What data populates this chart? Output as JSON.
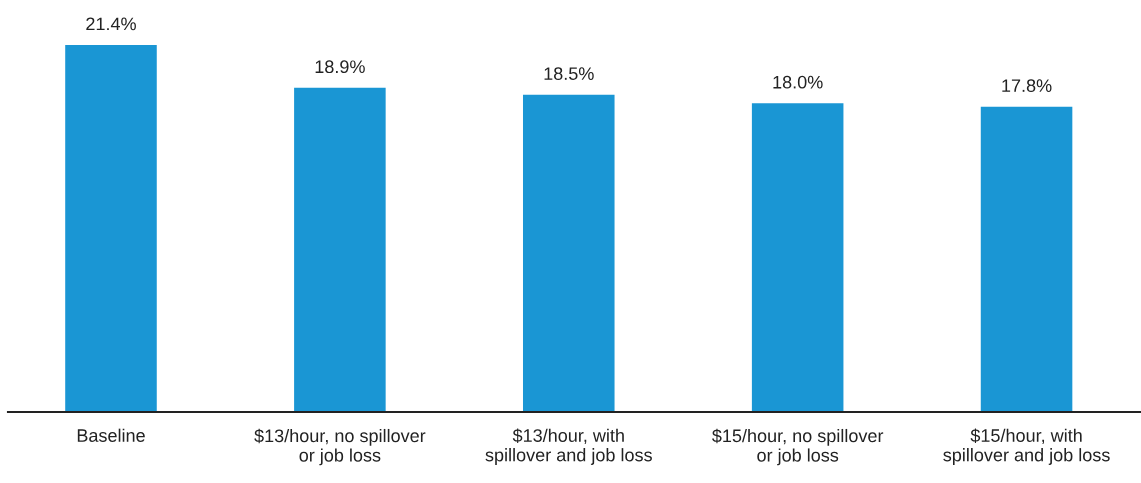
{
  "chart_data": {
    "type": "bar",
    "categories": [
      "Baseline",
      "$13/hour, no spillover\nor job loss",
      "$13/hour, with\nspillover and job loss",
      "$15/hour, no spillover\nor job loss",
      "$15/hour, with\nspillover and job loss"
    ],
    "values": [
      21.4,
      18.9,
      18.5,
      18.0,
      17.8
    ],
    "value_labels": [
      "21.4%",
      "18.9%",
      "18.5%",
      "18.0%",
      "17.8%"
    ],
    "color": "#1a96d4",
    "grid": false,
    "legend": false
  }
}
